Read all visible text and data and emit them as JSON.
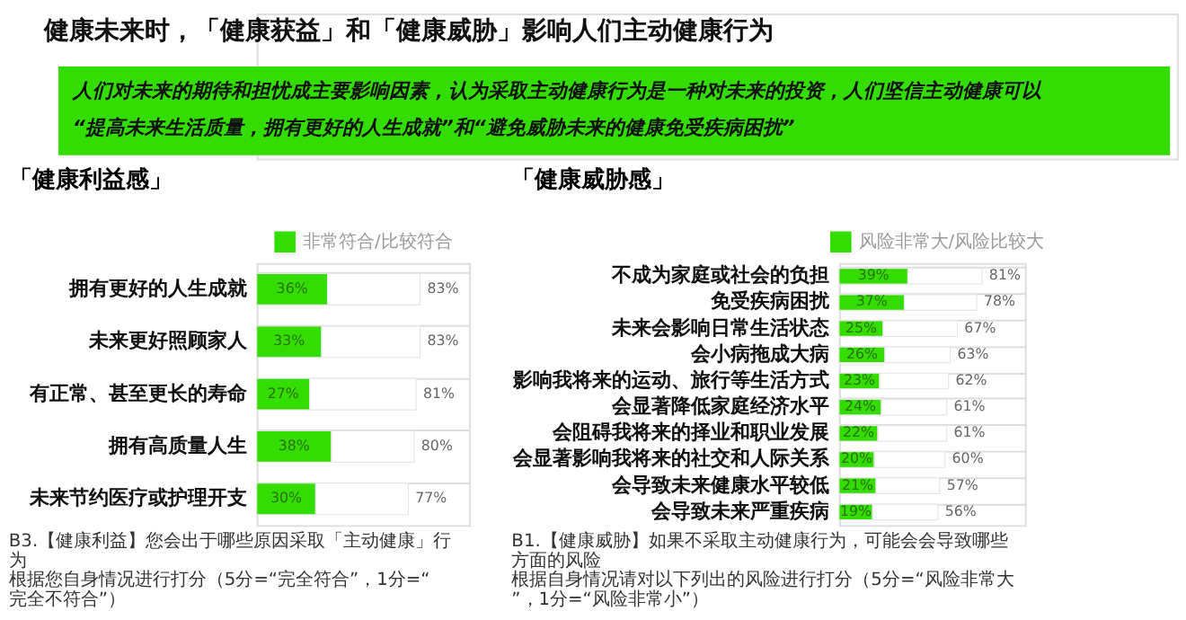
{
  "chart_data": [
    {
      "type": "other",
      "title": "健康未来时，「健康获益」和「健康威胁」影响人们主动健康行为",
      "subtitle": "人们对未来的期待和担忧成主要影响因素，认为采取主动健康行为是一种对未来的投资，人们坚信主动健康可以“提高未来生活质量，拥有更好的人生成就”和“避免威胁未来的健康免受疾病困扰”"
    },
    {
      "type": "bar",
      "orientation": "horizontal",
      "stacked": true,
      "title": "「健康利益感」",
      "legend": "top right",
      "grid": "y",
      "categories": [
        "拥有更好的人生成就",
        "未来更好照顾家人",
        "有正常、甚至更长的寿命",
        "拥有高质量人生",
        "未来节约医疗或护理开支"
      ],
      "series": [
        {
          "name": "非常符合/比较符合",
          "color": "#33dd00",
          "values": [
            36,
            33,
            27,
            38,
            30
          ],
          "value_labels": [
            "36%",
            "33%",
            "27%",
            "38%",
            "30%"
          ]
        },
        {
          "color": "#ffffff",
          "values": [
            47,
            50,
            54,
            42,
            47
          ]
        }
      ],
      "totals": [
        "83%",
        "83%",
        "81%",
        "80%",
        "77%"
      ],
      "annotations": [
        "B3.【健康利益】您会出于哪些原因采取「主动健康」行为",
        "根据您自身情况进行打分（5分=“完全符合”，1分=“完全不符合”）"
      ]
    },
    {
      "type": "bar",
      "orientation": "horizontal",
      "stacked": true,
      "title": "「健康威胁感」",
      "legend": "top right",
      "grid": "y",
      "categories": [
        "不成为家庭或社会的负担",
        "免受疾病困扰",
        "未来会影响日常生活状态",
        "会小病拖成大病",
        "影响我将来的运动、旅行等生活方式",
        "会显著降低家庭经济水平",
        "会阻碍我将来的择业和职业发展",
        "会显著影响我将来的社交和人际关系",
        "会导致未来健康水平较低",
        "会导致未来严重疾病"
      ],
      "series": [
        {
          "name": "风险非常大/风险比较大",
          "color": "#33dd00",
          "values": [
            39,
            37,
            25,
            26,
            23,
            24,
            22,
            20,
            21,
            19
          ],
          "value_labels": [
            "39%",
            "37%",
            "25%",
            "26%",
            "23%",
            "24%",
            "22%",
            "20%",
            "21%",
            "19%"
          ]
        },
        {
          "color": "#ffffff",
          "values": [
            42,
            41,
            42,
            37,
            39,
            37,
            39,
            40,
            36,
            37
          ]
        }
      ],
      "totals": [
        "81%",
        "78%",
        "67%",
        "63%",
        "62%",
        "61%",
        "61%",
        "60%",
        "57%",
        "56%"
      ],
      "annotations": [
        "B1.【健康威胁】如果不采取主动健康行为，可能会会导致哪些方面的风险",
        "根据自身情况请对以下列出的风险进行打分（5分=“风险非常大”，1分=“风险非常小”）"
      ]
    }
  ]
}
